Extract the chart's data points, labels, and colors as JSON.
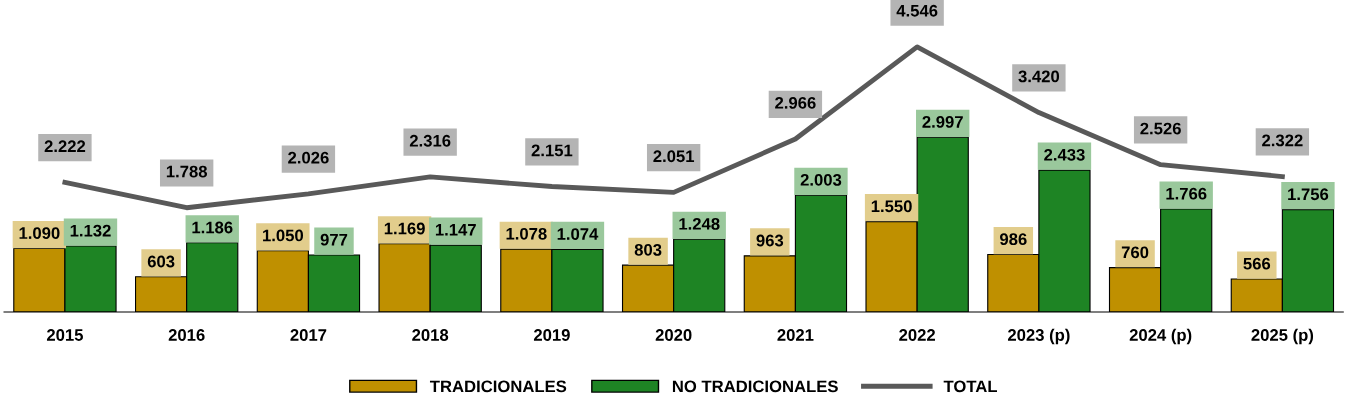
{
  "chart_data": {
    "type": "bar",
    "categories": [
      "2015",
      "2016",
      "2017",
      "2018",
      "2019",
      "2020",
      "2021",
      "2022",
      "2023 (p)",
      "2024 (p)",
      "2025 (p)"
    ],
    "series": [
      {
        "name": "TRADICIONALES",
        "color": "#bf9000",
        "values": [
          1090,
          603,
          1050,
          1169,
          1078,
          803,
          963,
          1550,
          986,
          760,
          566
        ],
        "value_labels": [
          "1.090",
          "603",
          "1.050",
          "1.169",
          "1.078",
          "803",
          "963",
          "1.550",
          "986",
          "760",
          "566"
        ]
      },
      {
        "name": "NO TRADICIONALES",
        "color": "#1e8424",
        "values": [
          1132,
          1186,
          977,
          1147,
          1074,
          1248,
          2003,
          2997,
          2433,
          1766,
          1756
        ],
        "value_labels": [
          "1.132",
          "1.186",
          "977",
          "1.147",
          "1.074",
          "1.248",
          "2.003",
          "2.997",
          "2.433",
          "1.766",
          "1.756"
        ]
      },
      {
        "name": "TOTAL",
        "type": "line",
        "color": "#595959",
        "values": [
          2222,
          1788,
          2026,
          2316,
          2151,
          2051,
          2966,
          4546,
          3420,
          2526,
          2322
        ],
        "value_labels": [
          "2.222",
          "1.788",
          "2.026",
          "2.316",
          "2.151",
          "2.051",
          "2.966",
          "4.546",
          "3.420",
          "2.526",
          "2.322"
        ]
      }
    ],
    "ylim": [
      0,
      5350
    ],
    "tick_labels": "x",
    "grid": false,
    "legend": "bottom",
    "marker": "none",
    "line_style": "solid"
  }
}
